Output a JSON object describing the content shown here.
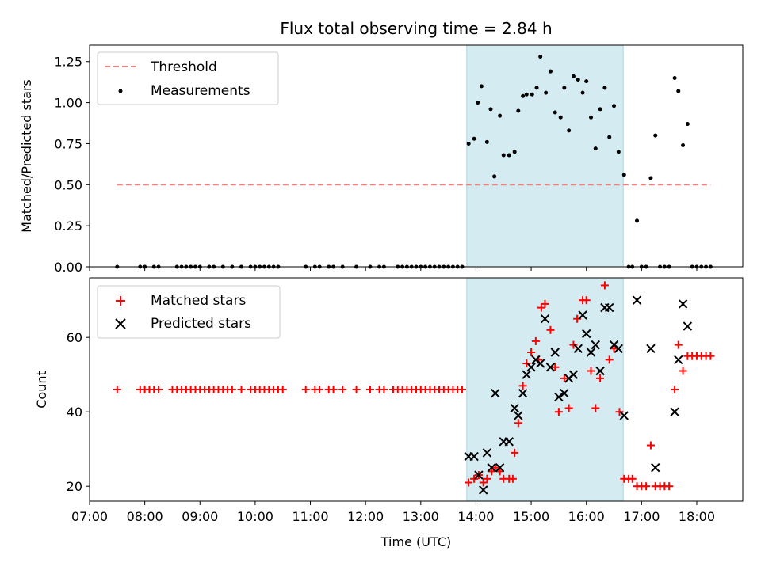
{
  "chart_data": [
    {
      "type": "scatter",
      "title": "Flux total observing time = 2.84 h",
      "xlabel": "",
      "ylabel": "Matched/Predicted stars",
      "xlim": [
        "07:00",
        "18:50"
      ],
      "ylim": [
        0,
        1.35
      ],
      "yticks": [
        "0.00",
        "0.25",
        "0.50",
        "0.75",
        "1.00",
        "1.25"
      ],
      "legend_position": "top-left",
      "highlight_span": {
        "from": "13:50",
        "to": "16:40",
        "color": "#d4ebf1"
      },
      "series": [
        {
          "name": "Threshold",
          "kind": "dashed-line",
          "color": "#f08080",
          "points": [
            [
              "07:30",
              0.5
            ],
            [
              "18:15",
              0.5
            ]
          ]
        },
        {
          "name": "Measurements",
          "kind": "dot",
          "color": "#000000",
          "points": [
            [
              "07:30",
              0
            ],
            [
              "07:55",
              0
            ],
            [
              "08:00",
              0
            ],
            [
              "08:10",
              0
            ],
            [
              "08:15",
              0
            ],
            [
              "08:35",
              0
            ],
            [
              "08:40",
              0
            ],
            [
              "08:45",
              0
            ],
            [
              "08:50",
              0
            ],
            [
              "08:55",
              0
            ],
            [
              "09:00",
              0
            ],
            [
              "09:10",
              0
            ],
            [
              "09:15",
              0
            ],
            [
              "09:25",
              0
            ],
            [
              "09:35",
              0
            ],
            [
              "09:45",
              0
            ],
            [
              "09:55",
              0
            ],
            [
              "10:00",
              0
            ],
            [
              "10:05",
              0
            ],
            [
              "10:10",
              0
            ],
            [
              "10:15",
              0
            ],
            [
              "10:20",
              0
            ],
            [
              "10:25",
              0
            ],
            [
              "10:55",
              0
            ],
            [
              "11:05",
              0
            ],
            [
              "11:10",
              0
            ],
            [
              "11:20",
              0
            ],
            [
              "11:25",
              0
            ],
            [
              "11:35",
              0
            ],
            [
              "11:50",
              0
            ],
            [
              "12:05",
              0
            ],
            [
              "12:15",
              0
            ],
            [
              "12:20",
              0
            ],
            [
              "12:35",
              0
            ],
            [
              "12:40",
              0
            ],
            [
              "12:45",
              0
            ],
            [
              "12:50",
              0
            ],
            [
              "12:55",
              0
            ],
            [
              "13:00",
              0
            ],
            [
              "13:05",
              0
            ],
            [
              "13:10",
              0
            ],
            [
              "13:15",
              0
            ],
            [
              "13:20",
              0
            ],
            [
              "13:25",
              0
            ],
            [
              "13:30",
              0
            ],
            [
              "13:35",
              0
            ],
            [
              "13:40",
              0
            ],
            [
              "13:45",
              0
            ],
            [
              "13:52",
              0.75
            ],
            [
              "13:58",
              0.78
            ],
            [
              "14:02",
              1.0
            ],
            [
              "14:06",
              1.1
            ],
            [
              "14:12",
              0.76
            ],
            [
              "14:16",
              0.96
            ],
            [
              "14:20",
              0.55
            ],
            [
              "14:26",
              0.92
            ],
            [
              "14:30",
              0.68
            ],
            [
              "14:36",
              0.68
            ],
            [
              "14:42",
              0.7
            ],
            [
              "14:46",
              0.95
            ],
            [
              "14:51",
              1.04
            ],
            [
              "14:55",
              1.05
            ],
            [
              "15:01",
              1.05
            ],
            [
              "15:06",
              1.09
            ],
            [
              "15:10",
              1.28
            ],
            [
              "15:16",
              1.06
            ],
            [
              "15:21",
              1.19
            ],
            [
              "15:26",
              0.94
            ],
            [
              "15:32",
              0.91
            ],
            [
              "15:36",
              1.09
            ],
            [
              "15:41",
              0.83
            ],
            [
              "15:46",
              1.16
            ],
            [
              "15:51",
              1.14
            ],
            [
              "15:56",
              1.06
            ],
            [
              "16:00",
              1.13
            ],
            [
              "16:05",
              0.91
            ],
            [
              "16:10",
              0.72
            ],
            [
              "16:15",
              0.96
            ],
            [
              "16:20",
              1.09
            ],
            [
              "16:25",
              0.79
            ],
            [
              "16:30",
              0.98
            ],
            [
              "16:35",
              0.7
            ],
            [
              "16:41",
              0.56
            ],
            [
              "16:46",
              0
            ],
            [
              "16:50",
              0
            ],
            [
              "16:55",
              0.28
            ],
            [
              "17:00",
              0
            ],
            [
              "17:05",
              0
            ],
            [
              "17:10",
              0.54
            ],
            [
              "17:15",
              0.8
            ],
            [
              "17:20",
              0
            ],
            [
              "17:25",
              0
            ],
            [
              "17:30",
              0
            ],
            [
              "17:36",
              1.15
            ],
            [
              "17:40",
              1.07
            ],
            [
              "17:45",
              0.74
            ],
            [
              "17:50",
              0.87
            ],
            [
              "17:55",
              0
            ],
            [
              "18:00",
              0
            ],
            [
              "18:05",
              0
            ],
            [
              "18:10",
              0
            ],
            [
              "18:15",
              0
            ]
          ]
        }
      ]
    },
    {
      "type": "scatter",
      "title": "",
      "xlabel": "Time (UTC)",
      "ylabel": "Count",
      "xlim": [
        "07:00",
        "18:50"
      ],
      "ylim": [
        16,
        76
      ],
      "xticks": [
        "07:00",
        "08:00",
        "09:00",
        "10:00",
        "11:00",
        "12:00",
        "13:00",
        "14:00",
        "15:00",
        "16:00",
        "17:00",
        "18:00"
      ],
      "yticks": [
        "20",
        "40",
        "60"
      ],
      "legend_position": "top-left",
      "highlight_span": {
        "from": "13:50",
        "to": "16:40",
        "color": "#d4ebf1"
      },
      "series": [
        {
          "name": "Matched stars",
          "kind": "plus",
          "color": "#ff0000",
          "points": [
            [
              "07:30",
              46
            ],
            [
              "07:55",
              46
            ],
            [
              "08:00",
              46
            ],
            [
              "08:05",
              46
            ],
            [
              "08:10",
              46
            ],
            [
              "08:15",
              46
            ],
            [
              "08:30",
              46
            ],
            [
              "08:35",
              46
            ],
            [
              "08:40",
              46
            ],
            [
              "08:45",
              46
            ],
            [
              "08:50",
              46
            ],
            [
              "08:55",
              46
            ],
            [
              "09:00",
              46
            ],
            [
              "09:05",
              46
            ],
            [
              "09:10",
              46
            ],
            [
              "09:15",
              46
            ],
            [
              "09:20",
              46
            ],
            [
              "09:25",
              46
            ],
            [
              "09:30",
              46
            ],
            [
              "09:35",
              46
            ],
            [
              "09:45",
              46
            ],
            [
              "09:55",
              46
            ],
            [
              "10:00",
              46
            ],
            [
              "10:05",
              46
            ],
            [
              "10:10",
              46
            ],
            [
              "10:15",
              46
            ],
            [
              "10:20",
              46
            ],
            [
              "10:25",
              46
            ],
            [
              "10:30",
              46
            ],
            [
              "10:55",
              46
            ],
            [
              "11:05",
              46
            ],
            [
              "11:10",
              46
            ],
            [
              "11:20",
              46
            ],
            [
              "11:25",
              46
            ],
            [
              "11:35",
              46
            ],
            [
              "11:50",
              46
            ],
            [
              "12:05",
              46
            ],
            [
              "12:15",
              46
            ],
            [
              "12:20",
              46
            ],
            [
              "12:30",
              46
            ],
            [
              "12:35",
              46
            ],
            [
              "12:40",
              46
            ],
            [
              "12:45",
              46
            ],
            [
              "12:50",
              46
            ],
            [
              "12:55",
              46
            ],
            [
              "13:00",
              46
            ],
            [
              "13:05",
              46
            ],
            [
              "13:10",
              46
            ],
            [
              "13:15",
              46
            ],
            [
              "13:20",
              46
            ],
            [
              "13:25",
              46
            ],
            [
              "13:30",
              46
            ],
            [
              "13:35",
              46
            ],
            [
              "13:40",
              46
            ],
            [
              "13:45",
              46
            ],
            [
              "13:52",
              21
            ],
            [
              "13:58",
              22
            ],
            [
              "14:03",
              23
            ],
            [
              "14:08",
              21
            ],
            [
              "14:12",
              22
            ],
            [
              "14:17",
              24
            ],
            [
              "14:21",
              25
            ],
            [
              "14:26",
              24
            ],
            [
              "14:30",
              22
            ],
            [
              "14:36",
              22
            ],
            [
              "14:40",
              22
            ],
            [
              "14:42",
              29
            ],
            [
              "14:46",
              37
            ],
            [
              "14:51",
              47
            ],
            [
              "14:55",
              53
            ],
            [
              "15:00",
              56
            ],
            [
              "15:05",
              59
            ],
            [
              "15:08",
              54
            ],
            [
              "15:11",
              68
            ],
            [
              "15:15",
              69
            ],
            [
              "15:21",
              62
            ],
            [
              "15:26",
              52
            ],
            [
              "15:30",
              40
            ],
            [
              "15:36",
              49
            ],
            [
              "15:41",
              41
            ],
            [
              "15:46",
              58
            ],
            [
              "15:50",
              65
            ],
            [
              "15:56",
              70
            ],
            [
              "16:00",
              70
            ],
            [
              "16:05",
              51
            ],
            [
              "16:10",
              41
            ],
            [
              "16:15",
              49
            ],
            [
              "16:20",
              74
            ],
            [
              "16:25",
              54
            ],
            [
              "16:30",
              57
            ],
            [
              "16:36",
              40
            ],
            [
              "16:41",
              22
            ],
            [
              "16:46",
              22
            ],
            [
              "16:50",
              22
            ],
            [
              "16:55",
              20
            ],
            [
              "17:00",
              20
            ],
            [
              "17:05",
              20
            ],
            [
              "17:10",
              31
            ],
            [
              "17:15",
              20
            ],
            [
              "17:20",
              20
            ],
            [
              "17:25",
              20
            ],
            [
              "17:30",
              20
            ],
            [
              "17:36",
              46
            ],
            [
              "17:40",
              58
            ],
            [
              "17:45",
              51
            ],
            [
              "17:50",
              55
            ],
            [
              "17:55",
              55
            ],
            [
              "18:00",
              55
            ],
            [
              "18:05",
              55
            ],
            [
              "18:10",
              55
            ],
            [
              "18:15",
              55
            ]
          ]
        },
        {
          "name": "Predicted stars",
          "kind": "x",
          "color": "#000000",
          "points": [
            [
              "13:52",
              28
            ],
            [
              "13:58",
              28
            ],
            [
              "14:03",
              23
            ],
            [
              "14:08",
              19
            ],
            [
              "14:12",
              29
            ],
            [
              "14:17",
              25
            ],
            [
              "14:21",
              45
            ],
            [
              "14:26",
              25
            ],
            [
              "14:30",
              32
            ],
            [
              "14:36",
              32
            ],
            [
              "14:42",
              41
            ],
            [
              "14:46",
              39
            ],
            [
              "14:51",
              45
            ],
            [
              "14:55",
              50
            ],
            [
              "15:00",
              52
            ],
            [
              "15:05",
              54
            ],
            [
              "15:10",
              53
            ],
            [
              "15:15",
              65
            ],
            [
              "15:21",
              52
            ],
            [
              "15:26",
              56
            ],
            [
              "15:30",
              44
            ],
            [
              "15:36",
              45
            ],
            [
              "15:41",
              49
            ],
            [
              "15:46",
              50
            ],
            [
              "15:51",
              57
            ],
            [
              "15:56",
              66
            ],
            [
              "16:00",
              61
            ],
            [
              "16:05",
              56
            ],
            [
              "16:10",
              58
            ],
            [
              "16:15",
              51
            ],
            [
              "16:20",
              68
            ],
            [
              "16:25",
              68
            ],
            [
              "16:30",
              58
            ],
            [
              "16:35",
              57
            ],
            [
              "16:41",
              39
            ],
            [
              "16:55",
              70
            ],
            [
              "17:10",
              57
            ],
            [
              "17:15",
              25
            ],
            [
              "17:36",
              40
            ],
            [
              "17:40",
              54
            ],
            [
              "17:45",
              69
            ],
            [
              "17:50",
              63
            ]
          ]
        }
      ]
    }
  ]
}
